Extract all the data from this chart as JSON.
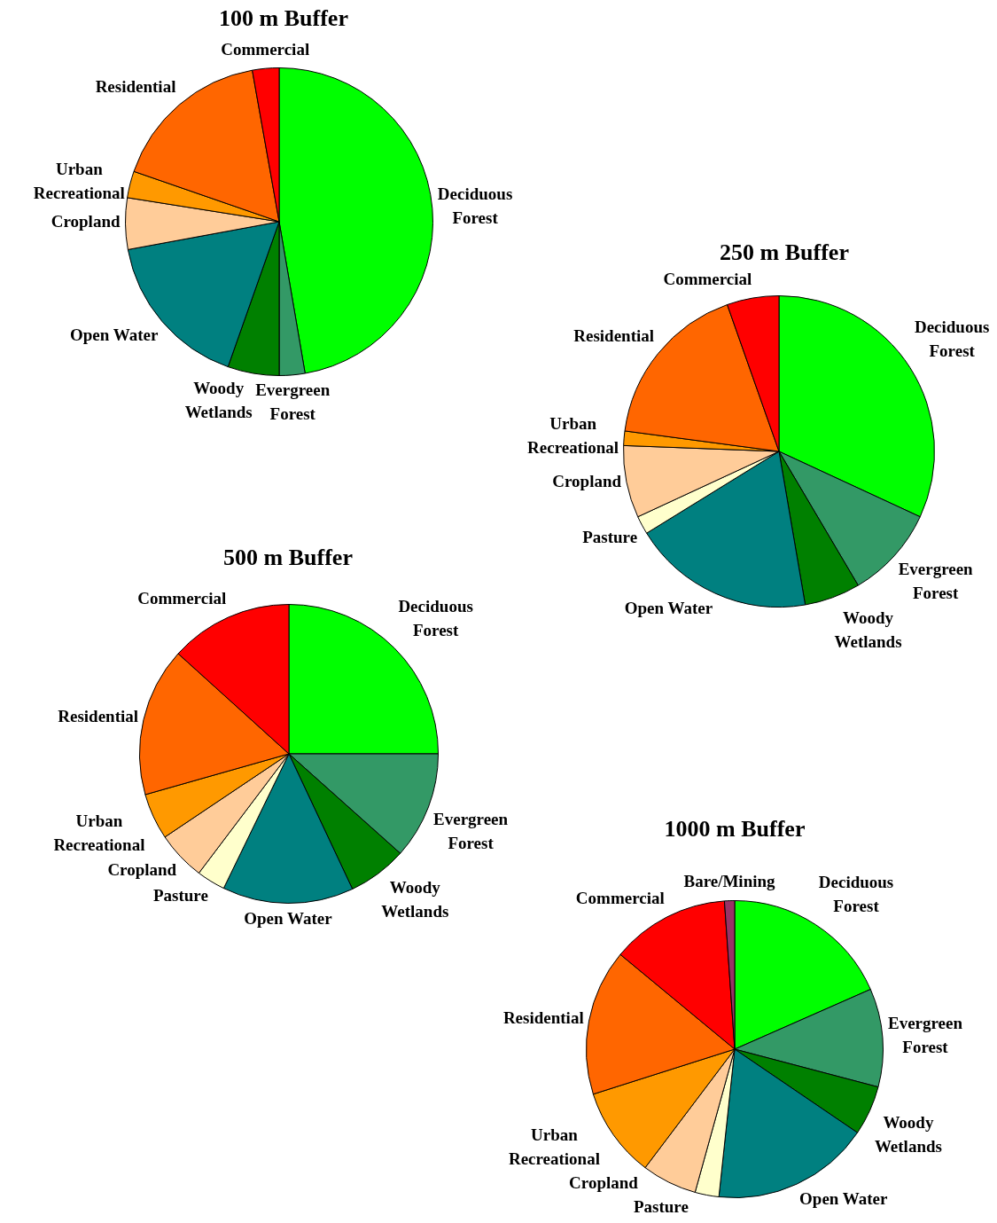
{
  "chart_data": [
    {
      "type": "pie",
      "title": "100 m Buffer",
      "categories": [
        "Deciduous\nForest",
        "Evergreen\nForest",
        "Woody\nWetlands",
        "Open Water",
        "Cropland",
        "Urban\nRecreational",
        "Residential",
        "Commercial"
      ],
      "values": [
        47.3,
        2.7,
        5.4,
        16.7,
        5.4,
        2.8,
        16.9,
        2.8
      ],
      "colors": [
        "#00ff00",
        "#339966",
        "#008000",
        "#008080",
        "#ffcc99",
        "#ff9900",
        "#ff6600",
        "#ff0000"
      ]
    },
    {
      "type": "pie",
      "title": "250 m Buffer",
      "categories": [
        "Deciduous\nForest",
        "Evergreen\nForest",
        "Woody\nWetlands",
        "Open Water",
        "Pasture",
        "Cropland",
        "Urban\nRecreational",
        "Residential",
        "Commercial"
      ],
      "values": [
        31.9,
        9.6,
        5.8,
        18.9,
        1.9,
        7.5,
        1.5,
        17.5,
        5.4
      ],
      "colors": [
        "#00ff00",
        "#339966",
        "#008000",
        "#008080",
        "#ffffcc",
        "#ffcc99",
        "#ff9900",
        "#ff6600",
        "#ff0000"
      ]
    },
    {
      "type": "pie",
      "title": "500 m Buffer",
      "categories": [
        "Deciduous\nForest",
        "Evergreen\nForest",
        "Woody\nWetlands",
        "Open Water",
        "Pasture",
        "Cropland",
        "Urban\nRecreational",
        "Residential",
        "Commercial"
      ],
      "values": [
        25,
        11.6,
        6.4,
        14.2,
        3.1,
        5.3,
        5.0,
        16.1,
        13.3
      ],
      "colors": [
        "#00ff00",
        "#339966",
        "#008000",
        "#008080",
        "#ffffcc",
        "#ffcc99",
        "#ff9900",
        "#ff6600",
        "#ff0000"
      ]
    },
    {
      "type": "pie",
      "title": "1000 m Buffer",
      "categories": [
        "Deciduous\nForest",
        "Evergreen\nForest",
        "Woody\nWetlands",
        "Open Water",
        "Pasture",
        "Cropland",
        "Urban\nRecreational",
        "Residential",
        "Commercial",
        "Bare/Mining"
      ],
      "values": [
        18.4,
        10.7,
        5.4,
        17.2,
        2.6,
        6.0,
        9.8,
        15.9,
        12.9,
        1.1
      ],
      "colors": [
        "#00ff00",
        "#339966",
        "#008000",
        "#008080",
        "#ffffcc",
        "#ffcc99",
        "#ff9900",
        "#ff6600",
        "#ff0000",
        "#993366"
      ]
    }
  ]
}
